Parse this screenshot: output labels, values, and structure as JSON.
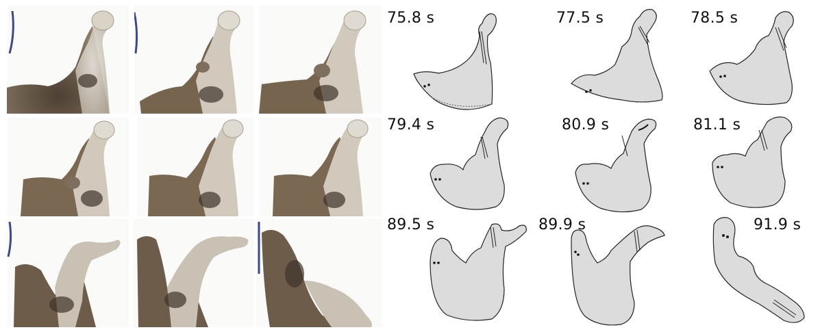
{
  "photo_panels": [
    {
      "id": "p1"
    },
    {
      "id": "p2"
    },
    {
      "id": "p3"
    },
    {
      "id": "p4"
    },
    {
      "id": "p5"
    },
    {
      "id": "p6"
    },
    {
      "id": "p7"
    },
    {
      "id": "p8"
    },
    {
      "id": "p9"
    }
  ],
  "tracing_panels": [
    {
      "time": "75.8 s"
    },
    {
      "time": "77.5 s"
    },
    {
      "time": "78.5 s"
    },
    {
      "time": "79.4 s"
    },
    {
      "time": "80.9 s"
    },
    {
      "time": "81.1 s"
    },
    {
      "time": "89.5 s"
    },
    {
      "time": "89.9 s"
    },
    {
      "time": "91.9 s"
    }
  ],
  "colors": {
    "outline_fill": "#dcdcdc",
    "outline_stroke": "#222222",
    "tissue_brown": "#6b5a48",
    "tissue_light": "#c9c1b3"
  }
}
